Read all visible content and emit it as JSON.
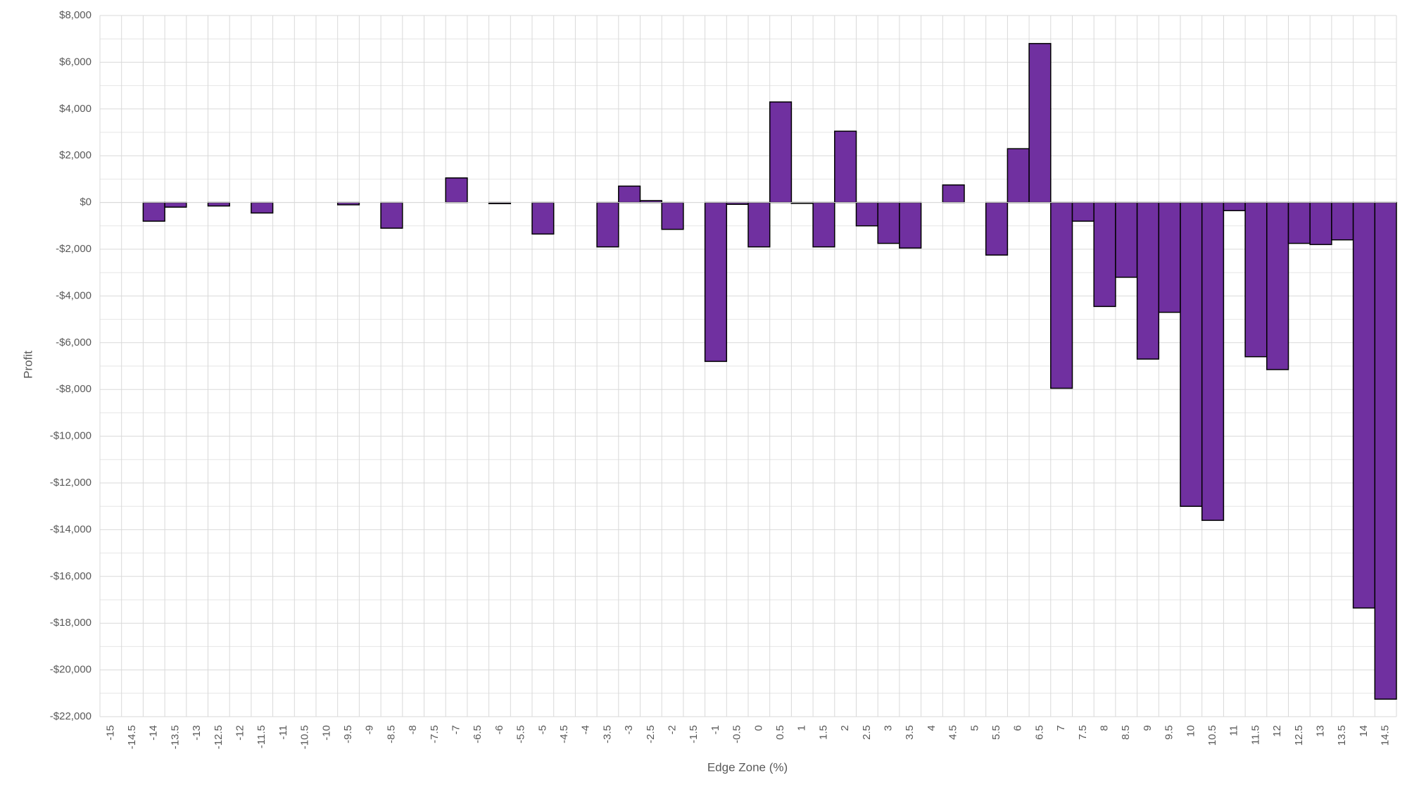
{
  "chart_data": {
    "type": "bar",
    "x_label": "Edge Zone (%)",
    "y_label": "Profit",
    "categories": [
      "-15",
      "-14.5",
      "-14",
      "-13.5",
      "-13",
      "-12.5",
      "-12",
      "-11.5",
      "-11",
      "-10.5",
      "-10",
      "-9.5",
      "-9",
      "-8.5",
      "-8",
      "-7.5",
      "-7",
      "-6.5",
      "-6",
      "-5.5",
      "-5",
      "-4.5",
      "-4",
      "-3.5",
      "-3",
      "-2.5",
      "-2",
      "-1.5",
      "-1",
      "-0.5",
      "0",
      "0.5",
      "1",
      "1.5",
      "2",
      "2.5",
      "3",
      "3.5",
      "4",
      "4.5",
      "5",
      "5.5",
      "6",
      "6.5",
      "7",
      "7.5",
      "8",
      "8.5",
      "9",
      "9.5",
      "10",
      "10.5",
      "11",
      "11.5",
      "12",
      "12.5",
      "13",
      "13.5",
      "14",
      "14.5"
    ],
    "values": [
      null,
      null,
      -800,
      -200,
      null,
      -150,
      null,
      -450,
      null,
      null,
      null,
      -100,
      null,
      -1100,
      null,
      null,
      1050,
      null,
      -50,
      null,
      -1350,
      null,
      null,
      -1900,
      700,
      80,
      -1150,
      null,
      -6800,
      -80,
      -1900,
      4300,
      -40,
      -1900,
      3050,
      -1000,
      -1750,
      -1950,
      null,
      750,
      null,
      -2250,
      2300,
      6800,
      -7950,
      -800,
      -4450,
      -3200,
      -6700,
      -4700,
      -13000,
      -13600,
      -350,
      -6600,
      -7150,
      -1750,
      -1800,
      -1600,
      -17350,
      -21250
    ],
    "color": "#7030a0",
    "ylim": [
      -22000,
      8000
    ],
    "yticks": [
      {
        "value": -22000,
        "label": "-$22,000"
      },
      {
        "value": -20000,
        "label": "-$20,000"
      },
      {
        "value": -18000,
        "label": "-$18,000"
      },
      {
        "value": -16000,
        "label": "-$16,000"
      },
      {
        "value": -14000,
        "label": "-$14,000"
      },
      {
        "value": -12000,
        "label": "-$12,000"
      },
      {
        "value": -10000,
        "label": "-$10,000"
      },
      {
        "value": -8000,
        "label": "-$8,000"
      },
      {
        "value": -6000,
        "label": "-$6,000"
      },
      {
        "value": -4000,
        "label": "-$4,000"
      },
      {
        "value": -2000,
        "label": "-$2,000"
      },
      {
        "value": 0,
        "label": "$0"
      },
      {
        "value": 2000,
        "label": "$2,000"
      },
      {
        "value": 4000,
        "label": "$4,000"
      },
      {
        "value": 6000,
        "label": "$6,000"
      },
      {
        "value": 8000,
        "label": "$8,000"
      }
    ],
    "grid": true
  }
}
